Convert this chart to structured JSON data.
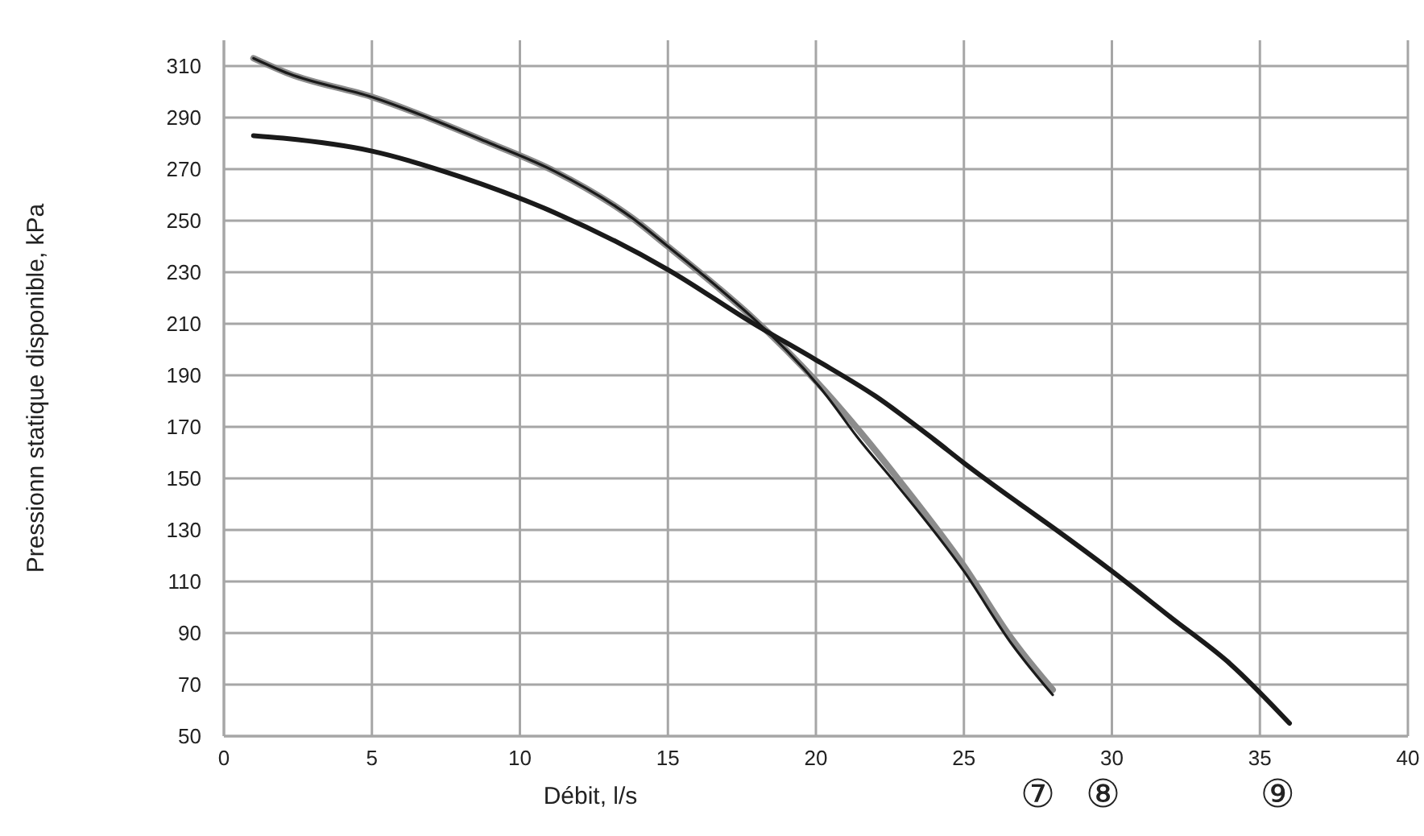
{
  "chart_data": {
    "type": "line",
    "xlabel": "Débit, l/s",
    "ylabel": "Pressionn statique disponible, kPa",
    "xlim": [
      0,
      40
    ],
    "xticks": [
      0,
      5,
      10,
      15,
      20,
      25,
      30,
      35,
      40
    ],
    "ylim": [
      50,
      320
    ],
    "yticks": [
      50,
      70,
      90,
      110,
      130,
      150,
      170,
      190,
      210,
      230,
      250,
      270,
      290,
      310
    ],
    "grid": true,
    "marker": "none",
    "line_style": "solid",
    "series": [
      {
        "color": "#8c8c8c",
        "x": [
          1,
          2.2,
          5,
          9,
          11.2,
          13.8,
          15,
          16.7,
          17.8,
          20.3,
          21.5,
          22.9,
          25,
          26.6,
          28
        ],
        "values": [
          313,
          307,
          298,
          280,
          269,
          251,
          240,
          224,
          213,
          184,
          168,
          148,
          116,
          88,
          68
        ]
      },
      {
        "color": "#1a1a1a",
        "x": [
          1,
          2.2,
          5,
          9,
          11.2,
          13.8,
          15,
          16.7,
          17.8,
          20.3,
          21.4,
          22.7,
          25,
          26.6,
          28
        ],
        "values": [
          313,
          307,
          298,
          280,
          269,
          251,
          240,
          224,
          213,
          183,
          166,
          148,
          114,
          86,
          66
        ]
      },
      {
        "color": "#1a1a1a",
        "x": [
          1,
          2,
          5,
          8,
          11.2,
          15,
          17.9,
          20,
          22,
          24,
          25,
          26.9,
          28,
          30,
          32,
          34,
          36
        ],
        "values": [
          283,
          282,
          277,
          267,
          253,
          231,
          210,
          196,
          182,
          165,
          156,
          140,
          131,
          114,
          96,
          78,
          55
        ]
      }
    ],
    "annotations": [
      "⑦",
      "⑧",
      "⑨"
    ]
  }
}
